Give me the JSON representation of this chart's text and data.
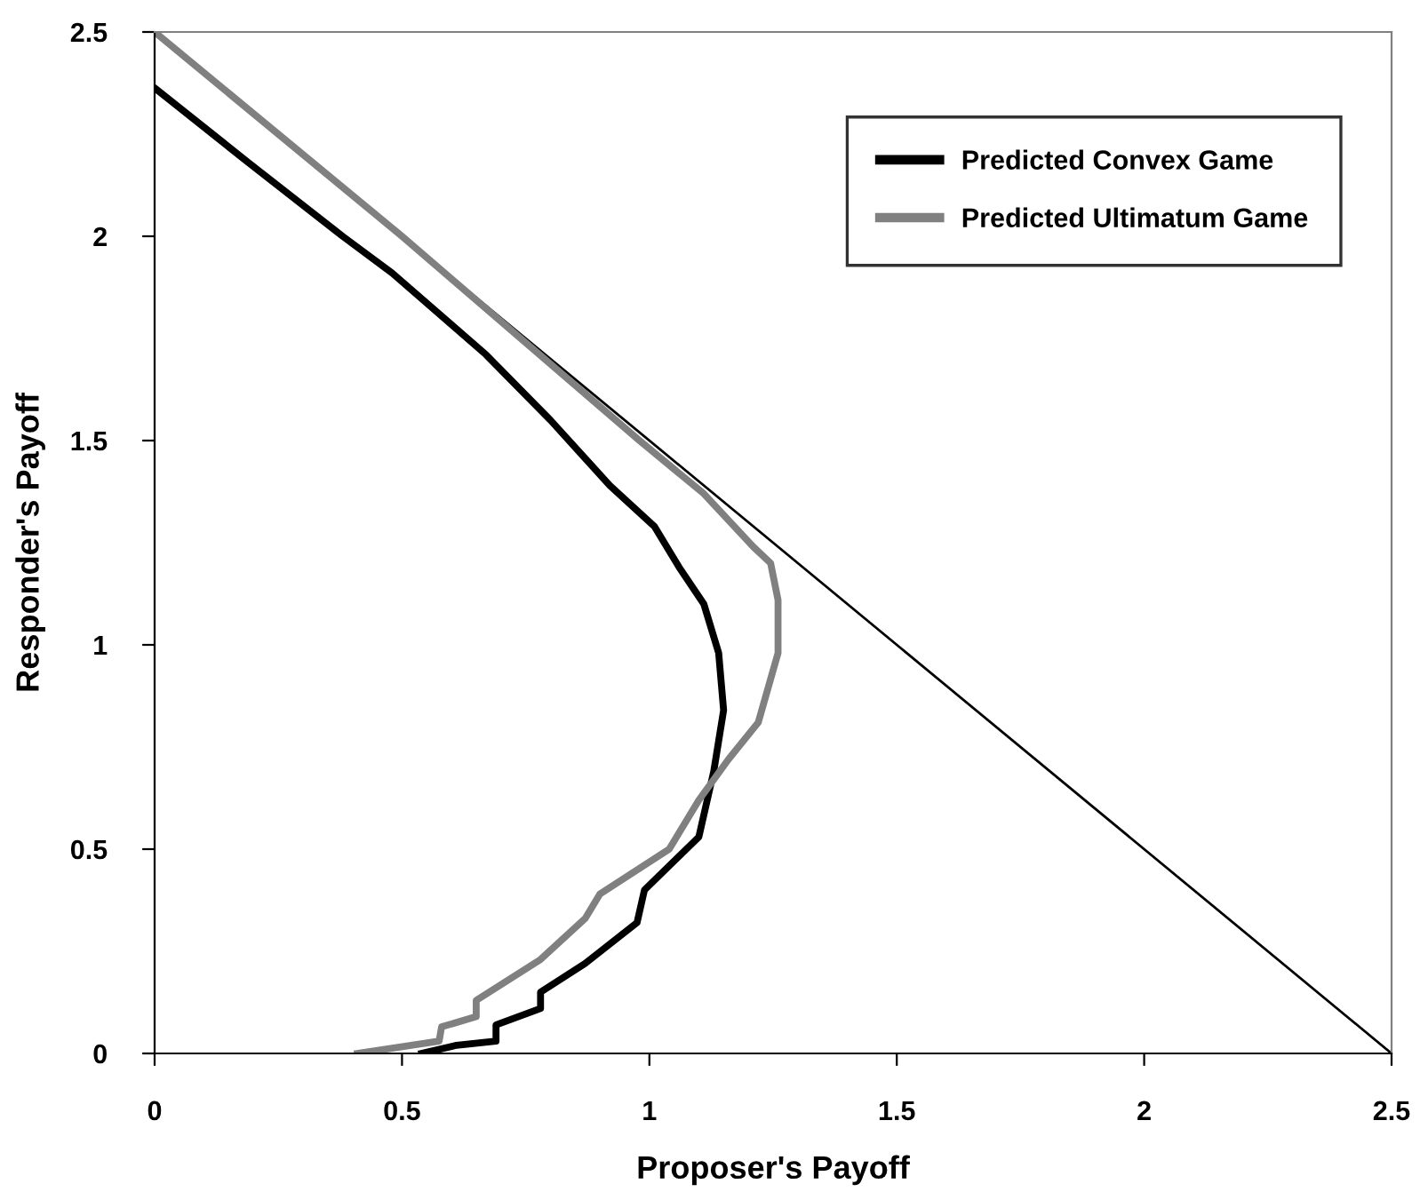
{
  "chart_data": {
    "type": "line",
    "xlabel": "Proposer's Payoff",
    "ylabel": "Responder's Payoff",
    "xlim": [
      0,
      2.5
    ],
    "ylim": [
      0,
      2.5
    ],
    "xticks": [
      0,
      0.5,
      1,
      1.5,
      2,
      2.5
    ],
    "yticks": [
      0,
      0.5,
      1,
      1.5,
      2,
      2.5
    ],
    "grid": false,
    "legend": "top right",
    "marker": "none",
    "line_style": "solid",
    "series": [
      {
        "x": [
          0,
          2.5
        ],
        "values": [
          2.5,
          0
        ],
        "color": "#000000"
      },
      {
        "name": "Predicted Convex Game",
        "color": "#000000",
        "x": [
          0.003,
          0.19,
          0.38,
          0.48,
          0.67,
          0.8,
          0.92,
          1.01,
          1.06,
          1.11,
          1.14,
          1.15,
          1.13,
          1.1,
          0.99,
          0.975,
          0.87,
          0.78,
          0.78,
          0.69,
          0.69,
          0.61,
          0.54
        ],
        "values": [
          2.36,
          2.18,
          2.0,
          1.91,
          1.71,
          1.55,
          1.39,
          1.29,
          1.19,
          1.1,
          0.98,
          0.84,
          0.69,
          0.53,
          0.4,
          0.32,
          0.22,
          0.15,
          0.11,
          0.07,
          0.03,
          0.02,
          0
        ]
      },
      {
        "name": "Predicted Ultimatum Game",
        "color": "#808080",
        "x": [
          0,
          0.5,
          0.98,
          1.11,
          1.21,
          1.245,
          1.26,
          1.26,
          1.22,
          1.16,
          1.1,
          1.04,
          0.9,
          0.87,
          0.78,
          0.65,
          0.65,
          0.58,
          0.575,
          0.41
        ],
        "values": [
          2.5,
          2.0,
          1.5,
          1.37,
          1.24,
          1.2,
          1.11,
          0.98,
          0.81,
          0.72,
          0.62,
          0.5,
          0.39,
          0.33,
          0.23,
          0.13,
          0.09,
          0.065,
          0.03,
          0
        ]
      }
    ]
  }
}
